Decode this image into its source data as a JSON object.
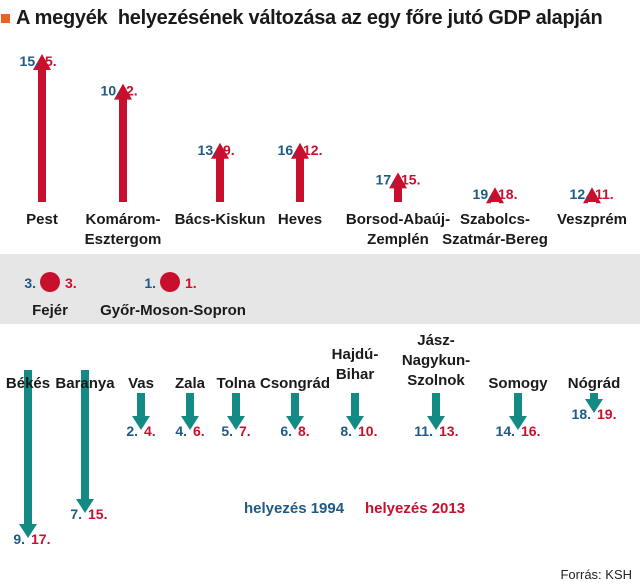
{
  "title": "A megyék  helyezésének változása az egy főre jutó GDP alapján",
  "source": "Forrás: KSH",
  "legend": {
    "rank1994": "helyezés 1994",
    "rank2013": "helyezés 2013"
  },
  "colors": {
    "blue": "#1e5a84",
    "red": "#c8102e",
    "teal": "#138a84",
    "orange": "#e8631c",
    "band": "#e6e6e6"
  },
  "chart_data": {
    "type": "arrow-rank-change",
    "title": "A megyék  helyezésének változása az egy főre jutó GDP alapján",
    "series": [
      {
        "name": "helyezés 1994",
        "key": "r1994"
      },
      {
        "name": "helyezés 2013",
        "key": "r2013"
      }
    ],
    "improved": [
      {
        "name": [
          "Pest"
        ],
        "r1994": 15,
        "r2013": 5
      },
      {
        "name": [
          "Komárom-",
          "Esztergom"
        ],
        "r1994": 10,
        "r2013": 2
      },
      {
        "name": [
          "Bács-Kiskun"
        ],
        "r1994": 13,
        "r2013": 9
      },
      {
        "name": [
          "Heves"
        ],
        "r1994": 16,
        "r2013": 12
      },
      {
        "name": [
          "Borsod-Abaúj-",
          "Zemplén"
        ],
        "r1994": 17,
        "r2013": 15
      },
      {
        "name": [
          "Szabolcs-",
          "Szatmár-Bereg"
        ],
        "r1994": 19,
        "r2013": 18
      },
      {
        "name": [
          "Veszprém"
        ],
        "r1994": 12,
        "r2013": 11
      }
    ],
    "unchanged": [
      {
        "name": [
          "Fejér"
        ],
        "r1994": 3,
        "r2013": 3
      },
      {
        "name": [
          "Győr-Moson-Sopron"
        ],
        "r1994": 1,
        "r2013": 1
      }
    ],
    "declined": [
      {
        "name": [
          "Békés"
        ],
        "r1994": 9,
        "r2013": 17
      },
      {
        "name": [
          "Baranya"
        ],
        "r1994": 7,
        "r2013": 15
      },
      {
        "name": [
          "Vas"
        ],
        "r1994": 2,
        "r2013": 4
      },
      {
        "name": [
          "Zala"
        ],
        "r1994": 4,
        "r2013": 6
      },
      {
        "name": [
          "Tolna"
        ],
        "r1994": 5,
        "r2013": 7
      },
      {
        "name": [
          "Csongrád"
        ],
        "r1994": 6,
        "r2013": 8
      },
      {
        "name": [
          "Hajdú-",
          "Bihar"
        ],
        "r1994": 8,
        "r2013": 10
      },
      {
        "name": [
          "Jász-",
          "Nagykun-",
          "Szolnok"
        ],
        "r1994": 11,
        "r2013": 13
      },
      {
        "name": [
          "Somogy"
        ],
        "r1994": 14,
        "r2013": 16
      },
      {
        "name": [
          "Nógrád"
        ],
        "r1994": 18,
        "r2013": 19
      }
    ]
  }
}
